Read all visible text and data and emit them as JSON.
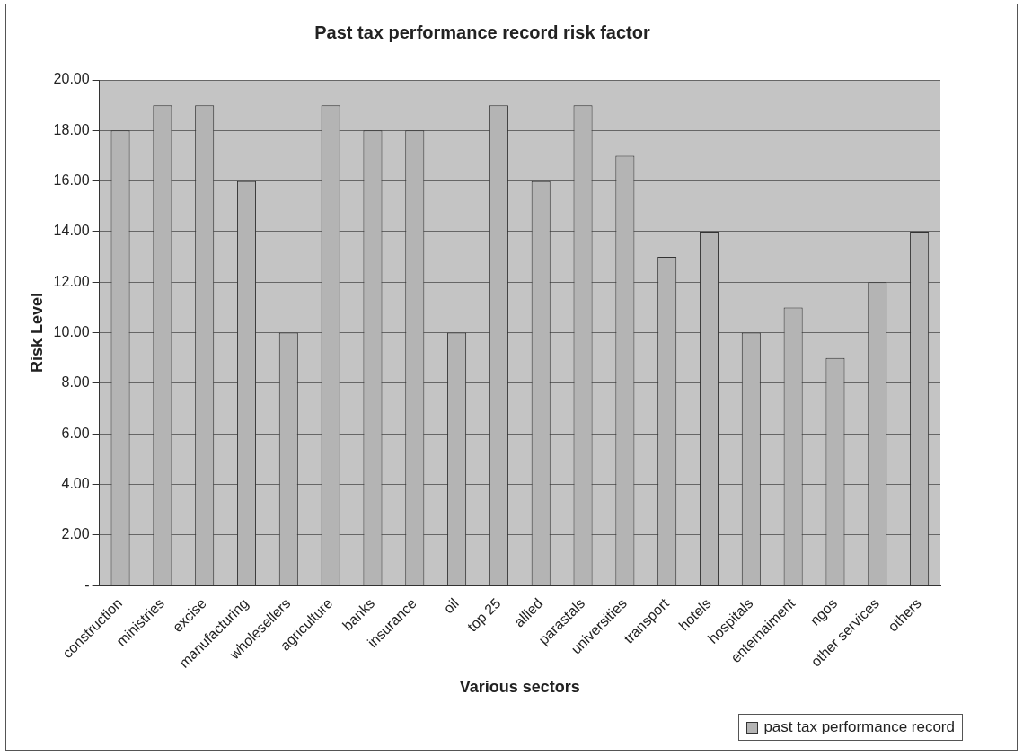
{
  "chart_data": {
    "type": "bar",
    "title": "Past tax performance record risk factor",
    "xlabel": "Various sectors",
    "ylabel": "Risk Level",
    "categories": [
      "construction",
      "ministries",
      "excise",
      "manufacturing",
      "wholesellers",
      "agriculture",
      "banks",
      "insurance",
      "oil",
      "top 25",
      "allied",
      "parastals",
      "universities",
      "transport",
      "hotels",
      "hospitals",
      "enternaiment",
      "ngos",
      "other services",
      "others"
    ],
    "series": [
      {
        "name": "past tax performance record",
        "color": "#b4b4b4",
        "values": [
          18,
          19,
          19,
          16,
          10,
          19,
          18,
          18,
          10,
          19,
          16,
          19,
          17,
          13,
          14,
          10,
          11,
          9,
          12,
          14
        ]
      }
    ],
    "ylim": [
      0,
      20
    ],
    "yticks": [
      {
        "value": 0,
        "label": "-"
      },
      {
        "value": 2,
        "label": "2.00"
      },
      {
        "value": 4,
        "label": "4.00"
      },
      {
        "value": 6,
        "label": "6.00"
      },
      {
        "value": 8,
        "label": "8.00"
      },
      {
        "value": 10,
        "label": "10.00"
      },
      {
        "value": 12,
        "label": "12.00"
      },
      {
        "value": 14,
        "label": "14.00"
      },
      {
        "value": 16,
        "label": "16.00"
      },
      {
        "value": 18,
        "label": "18.00"
      },
      {
        "value": 20,
        "label": "20.00"
      }
    ],
    "grid": "y",
    "legend": "bottom right"
  }
}
